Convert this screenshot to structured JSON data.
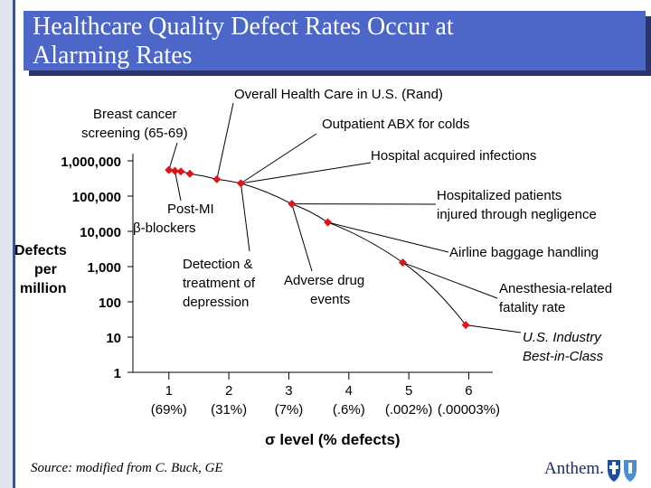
{
  "slide": {
    "title_line1": "Healthcare Quality Defect Rates Occur at",
    "title_line2": "Alarming Rates",
    "source": "Source:  modified from C. Buck, GE",
    "logo": "Anthem."
  },
  "colors": {
    "title_bg": "#4d67c9",
    "point": "#e0141b",
    "curve": "#000000"
  },
  "chart_data": {
    "type": "scatter",
    "scale": "log",
    "ylabel_lines": [
      "Defects",
      "per",
      "million"
    ],
    "y_ticks": [
      "1,000,000",
      "100,000",
      "10,000",
      "1,000",
      "100",
      "10",
      "1"
    ],
    "x_ticks": [
      {
        "line1": "1",
        "line2": "(69%)"
      },
      {
        "line1": "2",
        "line2": "(31%)"
      },
      {
        "line1": "3",
        "line2": "(7%)"
      },
      {
        "line1": "4",
        "line2": "(.6%)"
      },
      {
        "line1": "5",
        "line2": "(.002%)"
      },
      {
        "line1": "6",
        "line2": "(.00003%)"
      }
    ],
    "xlabel": "σ level (% defects)",
    "xlim": [
      0.4,
      6.4
    ],
    "ylim": [
      1,
      1000000
    ],
    "points": [
      {
        "x": 1.0,
        "y": 550000
      },
      {
        "x": 1.1,
        "y": 520000
      },
      {
        "x": 1.2,
        "y": 500000
      },
      {
        "x": 1.35,
        "y": 430000
      },
      {
        "x": 1.8,
        "y": 300000
      },
      {
        "x": 2.2,
        "y": 230000
      },
      {
        "x": 3.05,
        "y": 60000
      },
      {
        "x": 3.65,
        "y": 18000
      },
      {
        "x": 4.9,
        "y": 1300
      },
      {
        "x": 5.95,
        "y": 22
      }
    ],
    "annotations": [
      "Overall Health Care in U.S. (Rand)",
      "Breast cancer screening (65-69)",
      "Outpatient ABX for colds",
      "Hospital acquired infections",
      "Post-MI β-blockers",
      "Hospitalized patients injured through negligence",
      "Detection & treatment of depression",
      "Adverse drug events",
      "Airline baggage handling",
      "Anesthesia-related fatality rate",
      "U.S. Industry Best-in-Class"
    ]
  }
}
